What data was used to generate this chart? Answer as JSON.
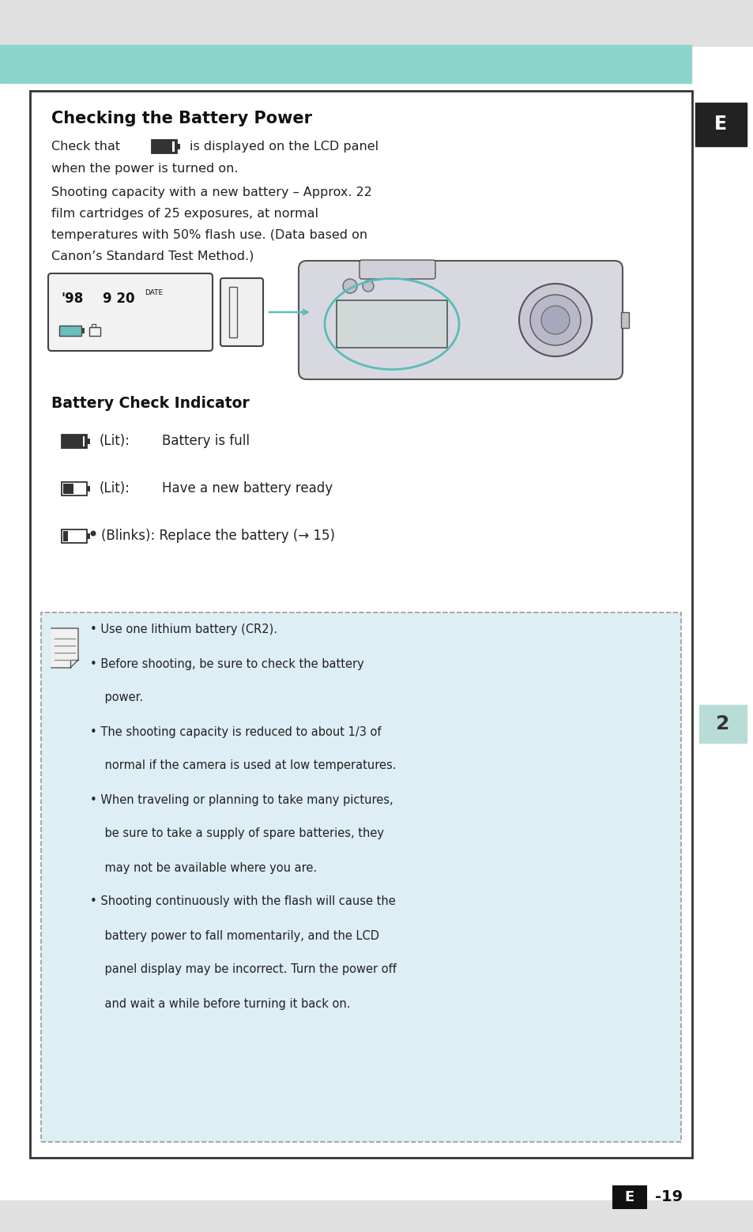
{
  "bg_color": "#ffffff",
  "teal_bar_color": "#8dd5cc",
  "title": "Checking the Battery Power",
  "section2_title": "Battery Check Indicator",
  "indicator1_label": "(Lit):",
  "indicator1_text": "Battery is full",
  "indicator2_label": "(Lit):",
  "indicator2_text": "Have a new battery ready",
  "indicator3_text": "(Blinks): Replace the battery (→ 15)",
  "note_lines": [
    "• Use one lithium battery (CR2).",
    "• Before shooting, be sure to check the battery",
    "    power.",
    "• The shooting capacity is reduced to about 1/3 of",
    "    normal if the camera is used at low temperatures.",
    "• When traveling or planning to take many pictures,",
    "    be sure to take a supply of spare batteries, they",
    "    may not be available where you are.",
    "• Shooting continuously with the flash will cause the",
    "    battery power to fall momentarily, and the LCD",
    "    panel display may be incorrect. Turn the power off",
    "    and wait a while before turning it back on."
  ],
  "e_label": "E",
  "sidebar_number": "2",
  "page_number": "-19",
  "note_bg": "#ddeef4",
  "outer_box_color": "#333333"
}
